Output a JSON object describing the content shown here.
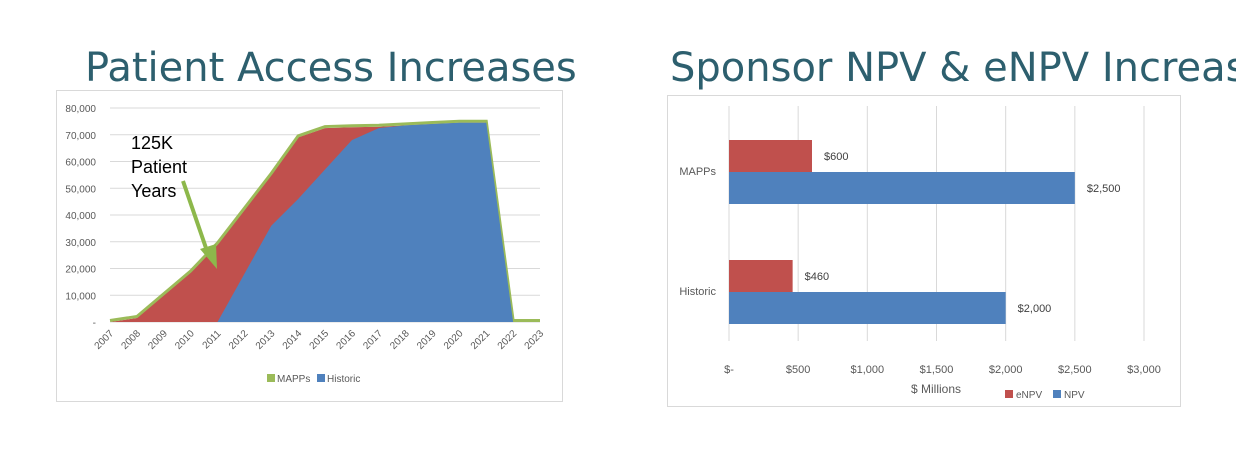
{
  "titles": {
    "left": "Patient Access Increases",
    "right": "Sponsor NPV & eNPV Increase"
  },
  "annotation": {
    "lines": [
      "125K",
      "Patient",
      "Years"
    ],
    "arrow_color": "#8db84b"
  },
  "colors": {
    "mapps": "#c0504d",
    "mapps_edge": "#9bbb59",
    "historic": "#4f81bd",
    "enpv": "#c0504d",
    "npv": "#4f81bd"
  },
  "chart_data": [
    {
      "type": "area",
      "title": "Patient Access Increases",
      "x": [
        "2007",
        "2008",
        "2009",
        "2010",
        "2011",
        "2012",
        "2013",
        "2014",
        "2015",
        "2016",
        "2017",
        "2018",
        "2019",
        "2020",
        "2021",
        "2022",
        "2023"
      ],
      "ylim": [
        0,
        80000
      ],
      "yticks": [
        "-",
        "10,000",
        "20,000",
        "30,000",
        "40,000",
        "50,000",
        "60,000",
        "70,000",
        "80,000"
      ],
      "grid": true,
      "legend_position": "bottom",
      "series": [
        {
          "name": "MAPPs",
          "values": [
            0,
            1500,
            10000,
            18500,
            29000,
            42000,
            55000,
            69000,
            72500,
            72800,
            73000,
            73500,
            74000,
            74500,
            74500,
            0,
            0
          ]
        },
        {
          "name": "Historic",
          "values": [
            0,
            0,
            0,
            0,
            0,
            18000,
            36000,
            46000,
            57000,
            68000,
            72500,
            73500,
            74000,
            74500,
            74500,
            0,
            0
          ]
        }
      ]
    },
    {
      "type": "bar",
      "orientation": "horizontal",
      "title": "Sponsor NPV & eNPV Increase",
      "categories": [
        "MAPPs",
        "Historic"
      ],
      "xlabel": "$ Millions",
      "xlim": [
        0,
        3000
      ],
      "xticks": [
        "$-",
        "$500",
        "$1,000",
        "$1,500",
        "$2,000",
        "$2,500",
        "$3,000"
      ],
      "grid": true,
      "legend_position": "bottom",
      "series": [
        {
          "name": "eNPV",
          "values": [
            600,
            460
          ],
          "labels": [
            "$600",
            "$460"
          ]
        },
        {
          "name": "NPV",
          "values": [
            2500,
            2000
          ],
          "labels": [
            "$2,500",
            "$2,000"
          ]
        }
      ]
    }
  ]
}
